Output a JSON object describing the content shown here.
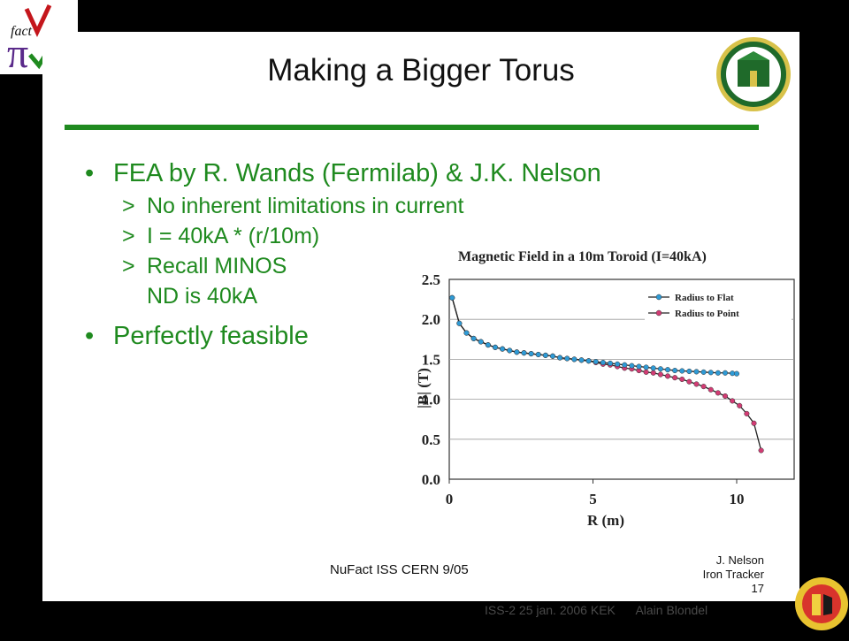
{
  "slide": {
    "title": "Making a Bigger Torus",
    "bullets": [
      {
        "text": "FEA by R. Wands (Fermilab) & J.K. Nelson",
        "sub": [
          "No inherent limitations in current",
          "I = 40kA * (r/10m)",
          "Recall MINOS",
          "ND is 40kA"
        ]
      },
      {
        "text": "Perfectly feasible",
        "sub": []
      }
    ],
    "sub_marker": ">",
    "footer_left": "NuFact ISS CERN 9/05",
    "footer_right": [
      "J. Nelson",
      "Iron Tracker",
      "17"
    ]
  },
  "bottom_bar": {
    "text": "ISS-2 25 jan. 2006 KEK      Alain Blondel"
  },
  "colors": {
    "accent": "#1f8a1f",
    "series_flat": "#2f9bd6",
    "series_point": "#d23c74"
  },
  "icons": [
    "nufact-logo-icon",
    "university-seal-icon",
    "geneva-seal-icon"
  ],
  "chart_data": {
    "type": "line",
    "title": "Magnetic Field in a 10m Toroid (I=40kA)",
    "xlabel": "R (m)",
    "ylabel": "|B| (T)",
    "xlim": [
      0,
      12
    ],
    "ylim": [
      0,
      2.5
    ],
    "xticks": [
      "0",
      "5",
      "10"
    ],
    "yticks": [
      "0.0",
      "0.5",
      "1.0",
      "1.5",
      "2.0",
      "2.5"
    ],
    "grid": true,
    "legend": "top-right",
    "series": [
      {
        "name": "Radius to Flat",
        "x": [
          0.1,
          0.35,
          0.6,
          0.85,
          1.1,
          1.35,
          1.6,
          1.85,
          2.1,
          2.35,
          2.6,
          2.85,
          3.1,
          3.35,
          3.6,
          3.85,
          4.1,
          4.35,
          4.6,
          4.85,
          5.1,
          5.35,
          5.6,
          5.85,
          6.1,
          6.35,
          6.6,
          6.85,
          7.1,
          7.35,
          7.6,
          7.85,
          8.1,
          8.35,
          8.6,
          8.85,
          9.1,
          9.35,
          9.6,
          9.85,
          10.0
        ],
        "y": [
          2.27,
          1.95,
          1.83,
          1.76,
          1.72,
          1.68,
          1.65,
          1.63,
          1.61,
          1.59,
          1.58,
          1.57,
          1.56,
          1.55,
          1.54,
          1.52,
          1.51,
          1.5,
          1.49,
          1.48,
          1.47,
          1.46,
          1.45,
          1.44,
          1.43,
          1.42,
          1.41,
          1.4,
          1.39,
          1.38,
          1.37,
          1.36,
          1.355,
          1.35,
          1.345,
          1.34,
          1.335,
          1.33,
          1.33,
          1.325,
          1.32
        ]
      },
      {
        "name": "Radius to Point",
        "x": [
          0.1,
          0.35,
          0.6,
          0.85,
          1.1,
          1.35,
          1.6,
          1.85,
          2.1,
          2.35,
          2.6,
          2.85,
          3.1,
          3.35,
          3.6,
          3.85,
          4.1,
          4.35,
          4.6,
          4.85,
          5.1,
          5.35,
          5.6,
          5.85,
          6.1,
          6.35,
          6.6,
          6.85,
          7.1,
          7.35,
          7.6,
          7.85,
          8.1,
          8.35,
          8.6,
          8.85,
          9.1,
          9.35,
          9.6,
          9.85,
          10.1,
          10.35,
          10.6,
          10.85
        ],
        "y": [
          2.27,
          1.95,
          1.83,
          1.76,
          1.72,
          1.68,
          1.65,
          1.63,
          1.61,
          1.59,
          1.58,
          1.57,
          1.56,
          1.55,
          1.54,
          1.52,
          1.51,
          1.5,
          1.49,
          1.48,
          1.46,
          1.44,
          1.43,
          1.41,
          1.39,
          1.38,
          1.36,
          1.34,
          1.33,
          1.31,
          1.29,
          1.27,
          1.25,
          1.22,
          1.19,
          1.16,
          1.12,
          1.08,
          1.04,
          0.98,
          0.92,
          0.82,
          0.7,
          0.36
        ]
      }
    ]
  }
}
